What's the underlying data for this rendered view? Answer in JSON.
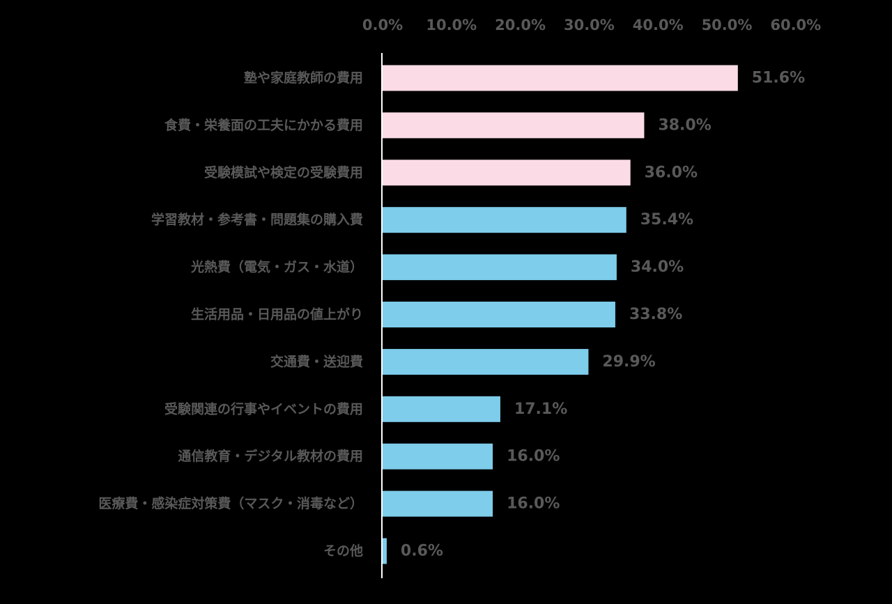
{
  "chart_data": {
    "type": "bar",
    "orientation": "horizontal",
    "title": "",
    "xlabel": "",
    "ylabel": "",
    "xlim": [
      0,
      60
    ],
    "x_ticks": [
      "0.0%",
      "10.0%",
      "20.0%",
      "30.0%",
      "40.0%",
      "50.0%",
      "60.0%"
    ],
    "x_axis_position": "top",
    "grid": false,
    "legend": "none",
    "categories": [
      "塾や家庭教師の費用",
      "食費・栄養面の工夫にかかる費用",
      "受験模試や検定の受験費用",
      "学習教材・参考書・問題集の購入費",
      "光熱費（電気・ガス・水道）",
      "生活用品・日用品の値上がり",
      "交通費・送迎費",
      "受験関連の行事やイベントの費用",
      "通信教育・デジタル教材の費用",
      "医療費・感染症対策費（マスク・消毒など）",
      "その他"
    ],
    "values": [
      51.6,
      38.0,
      36.0,
      35.4,
      34.0,
      33.8,
      29.9,
      17.1,
      16.0,
      16.0,
      0.6
    ],
    "value_labels": [
      "51.6%",
      "38.0%",
      "36.0%",
      "35.4%",
      "34.0%",
      "33.8%",
      "29.9%",
      "17.1%",
      "16.0%",
      "16.0%",
      "0.6%"
    ],
    "bar_colors": [
      "#FADBE6",
      "#FADBE6",
      "#FADBE6",
      "#7ECDEA",
      "#7ECDEA",
      "#7ECDEA",
      "#7ECDEA",
      "#7ECDEA",
      "#7ECDEA",
      "#7ECDEA",
      "#7ECDEA"
    ],
    "colors": {
      "background": "#000000",
      "text": "#595959",
      "axis": "#FFFFFF"
    }
  }
}
